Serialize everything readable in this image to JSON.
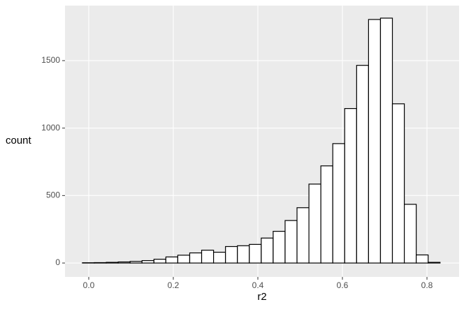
{
  "chart_data": {
    "type": "histogram",
    "x_label": "r2",
    "y_label": "count",
    "bins": [
      -0.015,
      0.0132,
      0.0414,
      0.0696,
      0.0978,
      0.126,
      0.1542,
      0.1824,
      0.2106,
      0.2388,
      0.267,
      0.2952,
      0.3234,
      0.3516,
      0.3798,
      0.408,
      0.4362,
      0.4644,
      0.4926,
      0.5208,
      0.549,
      0.5772,
      0.6054,
      0.6336,
      0.6618,
      0.69,
      0.7182,
      0.7464,
      0.7746,
      0.8028,
      0.831
    ],
    "counts": [
      2,
      3,
      5,
      8,
      12,
      18,
      28,
      45,
      58,
      75,
      95,
      80,
      122,
      128,
      138,
      185,
      235,
      315,
      410,
      585,
      720,
      885,
      1145,
      1465,
      1805,
      1815,
      1180,
      435,
      60,
      5
    ],
    "color": "#ffffff",
    "edge_color": "#000000",
    "xlim": [
      -0.0562,
      0.876
    ],
    "xticks": [
      {
        "value": 0,
        "label": "0.0"
      },
      0.2,
      0.4,
      0.6,
      0.8
    ],
    "ylim": [
      -103,
      1908
    ],
    "yticks": [
      0,
      500,
      1000,
      1500
    ],
    "grid": true
  }
}
